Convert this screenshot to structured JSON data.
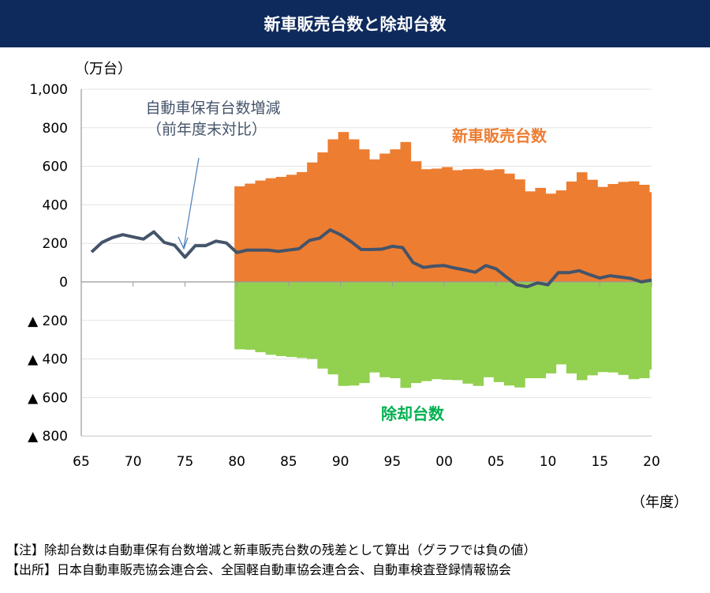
{
  "title": "新車販売台数と除却台数",
  "chart_data": {
    "type": "bar+line",
    "ylabel": "（万台）",
    "xlabel": "（年度）",
    "ylim": [
      -800,
      1000
    ],
    "xlim": [
      1965,
      2020
    ],
    "y_ticks": [
      1000,
      800,
      600,
      400,
      200,
      0,
      -200,
      -400,
      -600,
      -800
    ],
    "y_tick_labels": [
      "1,000",
      "800",
      "600",
      "400",
      "200",
      "0",
      "▲ 200",
      "▲ 400",
      "▲ 600",
      "▲ 800"
    ],
    "x_ticks": [
      1965,
      1970,
      1975,
      1980,
      1985,
      1990,
      1995,
      2000,
      2005,
      2010,
      2015,
      2020
    ],
    "x_tick_labels": [
      "65",
      "70",
      "75",
      "80",
      "85",
      "90",
      "95",
      "00",
      "05",
      "10",
      "15",
      "20"
    ],
    "grid": true,
    "colors": {
      "sales": "#ed7d31",
      "scrap": "#92d050",
      "line": "#44546a",
      "sales_label": "#ed7d31",
      "scrap_label": "#00b050"
    },
    "series": [
      {
        "name": "新車販売台数",
        "type": "bar",
        "x_start": 1980,
        "values": [
          496,
          510,
          526,
          538,
          545,
          556,
          570,
          620,
          672,
          740,
          778,
          740,
          688,
          636,
          666,
          688,
          726,
          626,
          585,
          588,
          596,
          580,
          585,
          587,
          580,
          585,
          562,
          532,
          470,
          488,
          458,
          475,
          521,
          569,
          530,
          493,
          508,
          519,
          522,
          504,
          466
        ]
      },
      {
        "name": "除却台数",
        "type": "bar",
        "x_start": 1980,
        "values": [
          -350,
          -352,
          -365,
          -378,
          -385,
          -390,
          -395,
          -400,
          -450,
          -480,
          -540,
          -538,
          -525,
          -470,
          -495,
          -500,
          -550,
          -525,
          -515,
          -505,
          -508,
          -510,
          -528,
          -540,
          -495,
          -520,
          -538,
          -548,
          -500,
          -500,
          -475,
          -428,
          -475,
          -510,
          -485,
          -468,
          -470,
          -483,
          -505,
          -500,
          -455
        ]
      },
      {
        "name": "自動車保有台数増減",
        "type": "line",
        "x_start": 1966,
        "values": [
          155,
          205,
          230,
          245,
          233,
          222,
          260,
          205,
          190,
          128,
          188,
          188,
          212,
          202,
          152,
          165,
          165,
          165,
          158,
          165,
          172,
          215,
          227,
          270,
          245,
          210,
          168,
          168,
          170,
          185,
          178,
          100,
          75,
          82,
          85,
          72,
          62,
          50,
          85,
          68,
          25,
          -15,
          -25,
          -5,
          -15,
          48,
          48,
          58,
          38,
          20,
          32,
          25,
          18,
          0,
          10
        ]
      }
    ],
    "annotations": {
      "line_label_1": "自動車保有台数増減",
      "line_label_2": "（前年度末対比）",
      "sales_label": "新車販売台数",
      "scrap_label": "除却台数"
    }
  },
  "notes": {
    "note": "【注】除却台数は自動車保有台数増減と新車販売台数の残差として算出（グラフでは負の値）",
    "source": "【出所】日本自動車販売協会連合会、全国軽自動車協会連合会、自動車検査登録情報協会"
  }
}
